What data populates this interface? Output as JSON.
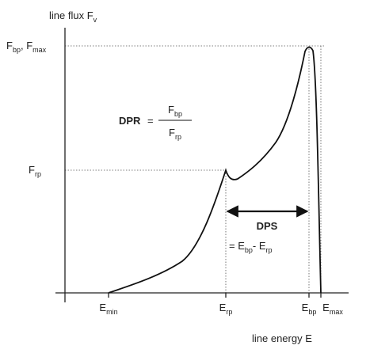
{
  "y_axis_label": [
    "line flux F",
    "v"
  ],
  "x_axis_label": [
    "line energy E"
  ],
  "y_ticks": [
    [
      "F",
      "bp",
      ", F",
      "max"
    ],
    [
      "F",
      "rp"
    ]
  ],
  "x_ticks": [
    [
      "E",
      "min"
    ],
    [
      "E",
      "rp"
    ],
    [
      "E",
      "bp"
    ],
    [
      "E",
      "max"
    ]
  ],
  "dpr": {
    "name": "DPR",
    "equals": "=",
    "numerator": [
      "F",
      "bp"
    ],
    "denominator": [
      "F",
      "rp"
    ]
  },
  "dps": {
    "name": "DPS",
    "formula": [
      "= E",
      "bp",
      "- E",
      "rp"
    ]
  }
}
